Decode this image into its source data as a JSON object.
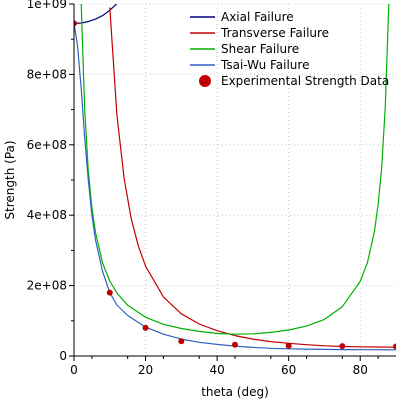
{
  "chart_data": {
    "type": "line",
    "xlabel": "theta (deg)",
    "ylabel": "Strength (Pa)",
    "xlim": [
      0,
      90
    ],
    "ylim": [
      0,
      1000000000
    ],
    "x_ticks": [
      0,
      20,
      40,
      60,
      80
    ],
    "x_tick_labels": [
      "0",
      "20",
      "40",
      "60",
      "80"
    ],
    "y_ticks": [
      0,
      200000000,
      400000000,
      600000000,
      800000000,
      1000000000
    ],
    "y_tick_labels": [
      "0",
      "2e+08",
      "4e+08",
      "6e+08",
      "8e+08",
      "1e+09"
    ],
    "grid": true,
    "legend_position": "top-right",
    "series": [
      {
        "name": "Axial Failure",
        "color": "#000080",
        "x": [
          0,
          2,
          4,
          6,
          8,
          10,
          12,
          14
        ],
        "y": [
          945000000,
          946000000,
          950000000,
          957000000,
          967000000,
          982000000,
          1001000000,
          1025000000
        ]
      },
      {
        "name": "Transverse Failure",
        "color": "#c00000",
        "x": [
          10,
          12,
          14,
          16,
          18,
          20,
          25,
          30,
          35,
          40,
          45,
          50,
          55,
          60,
          65,
          70,
          75,
          80,
          85,
          90
        ],
        "y": [
          990000000,
          685000000,
          505000000,
          390000000,
          312000000,
          255000000,
          168000000,
          120000000,
          91000000,
          72000000,
          58000000,
          48000000,
          41000000,
          36000000,
          32000000,
          29000000,
          27000000,
          26000000,
          25500000,
          25000000
        ]
      },
      {
        "name": "Shear Failure",
        "color": "#00b000",
        "x": [
          2,
          3,
          4,
          5,
          6,
          8,
          10,
          12,
          15,
          20,
          25,
          30,
          35,
          40,
          45,
          50,
          55,
          60,
          65,
          70,
          75,
          80,
          82,
          84,
          85,
          86,
          87,
          88
        ],
        "y": [
          1000000000,
          700000000,
          525000000,
          421000000,
          351000000,
          264000000,
          213000000,
          179000000,
          144000000,
          110000000,
          90000000,
          78000000,
          70000000,
          64000000,
          62000000,
          63000000,
          67000000,
          74000000,
          85000000,
          104000000,
          140000000,
          212000000,
          265000000,
          355000000,
          430000000,
          535000000,
          710000000,
          1000000000
        ]
      },
      {
        "name": "Tsai-Wu Failure",
        "color": "#3060c0",
        "x": [
          0,
          1,
          2,
          3,
          4,
          5,
          6,
          8,
          10,
          12,
          15,
          20,
          25,
          30,
          35,
          40,
          45,
          50,
          55,
          60,
          65,
          70,
          75,
          80,
          85,
          90
        ],
        "y": [
          945000000,
          880000000,
          760000000,
          620000000,
          500000000,
          400000000,
          330000000,
          240000000,
          180000000,
          145000000,
          115000000,
          82000000,
          62000000,
          48000000,
          39000000,
          33000000,
          28000000,
          24500000,
          22000000,
          20500000,
          19500000,
          18800000,
          18300000,
          18000000,
          17800000,
          17700000
        ]
      },
      {
        "name": "Experimental Strength Data",
        "color": "#c00000",
        "markers_only": true,
        "x": [
          0,
          10,
          20,
          30,
          45,
          60,
          75,
          90
        ],
        "y": [
          945000000,
          180000000,
          80000000,
          42000000,
          32000000,
          29000000,
          28000000,
          27000000
        ]
      }
    ]
  }
}
